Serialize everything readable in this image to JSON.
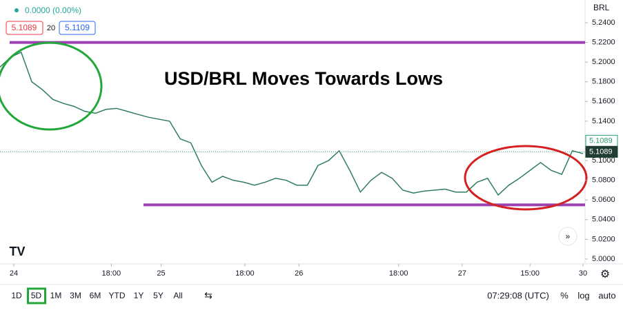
{
  "header": {
    "change": "0.0000 (0.00%)",
    "bid": "5.1089",
    "spread": "20",
    "ask": "5.1109",
    "currency": "BRL"
  },
  "chart_data": {
    "type": "line",
    "title": "USD/BRL Moves Towards Lows",
    "color": "#2f7d5a",
    "values": [
      5.195,
      5.205,
      5.21,
      5.18,
      5.172,
      5.162,
      5.158,
      5.155,
      5.15,
      5.148,
      5.152,
      5.153,
      5.15,
      5.147,
      5.144,
      5.142,
      5.14,
      5.122,
      5.118,
      5.095,
      5.078,
      5.084,
      5.08,
      5.078,
      5.075,
      5.078,
      5.082,
      5.08,
      5.075,
      5.075,
      5.095,
      5.1,
      5.11,
      5.09,
      5.068,
      5.08,
      5.088,
      5.082,
      5.07,
      5.067,
      5.069,
      5.07,
      5.071,
      5.068,
      5.068,
      5.078,
      5.082,
      5.065,
      5.075,
      5.082,
      5.09,
      5.098,
      5.09,
      5.086,
      5.11,
      5.107
    ],
    "xlim": [
      0,
      55
    ],
    "xticks": [
      {
        "value": 1.3,
        "label": "24"
      },
      {
        "value": 10.5,
        "label": "18:00"
      },
      {
        "value": 15.2,
        "label": "25"
      },
      {
        "value": 23.1,
        "label": "18:00"
      },
      {
        "value": 28.2,
        "label": "26"
      },
      {
        "value": 37.6,
        "label": "18:00"
      },
      {
        "value": 43.6,
        "label": "27"
      },
      {
        "value": 50,
        "label": "15:00"
      },
      {
        "value": 55,
        "label": "30"
      }
    ],
    "ylim": [
      5.0,
      5.24
    ],
    "yticks": [
      {
        "value": 5.0,
        "label": "5.0000"
      },
      {
        "value": 5.02,
        "label": "5.0200"
      },
      {
        "value": 5.04,
        "label": "5.0400"
      },
      {
        "value": 5.06,
        "label": "5.0600"
      },
      {
        "value": 5.08,
        "label": "5.0800"
      },
      {
        "value": 5.1,
        "label": "5.1000"
      },
      {
        "value": 5.12,
        "label": "5.1200"
      },
      {
        "value": 5.14,
        "label": "5.1400"
      },
      {
        "value": 5.16,
        "label": "5.1600"
      },
      {
        "value": 5.18,
        "label": "5.1800"
      },
      {
        "value": 5.2,
        "label": "5.2000"
      },
      {
        "value": 5.22,
        "label": "5.2200"
      },
      {
        "value": 5.24,
        "label": "5.2400"
      }
    ],
    "levels": [
      {
        "value": 5.22,
        "color": "#9c3fb0"
      },
      {
        "value": 5.055,
        "color": "#9c3fb0"
      }
    ],
    "price_labels": [
      {
        "value": 5.1089,
        "label": "5.1089",
        "color": "#2e9e6f"
      },
      {
        "value": 5.1089,
        "label": "5.1089",
        "color": "#1f3d33"
      }
    ]
  },
  "toolbar": {
    "ranges": [
      "1D",
      "5D",
      "1M",
      "3M",
      "6M",
      "YTD",
      "1Y",
      "5Y",
      "All"
    ],
    "active": 1,
    "time": "07:29:08 (UTC)",
    "options": [
      "%",
      "log",
      "auto"
    ]
  }
}
